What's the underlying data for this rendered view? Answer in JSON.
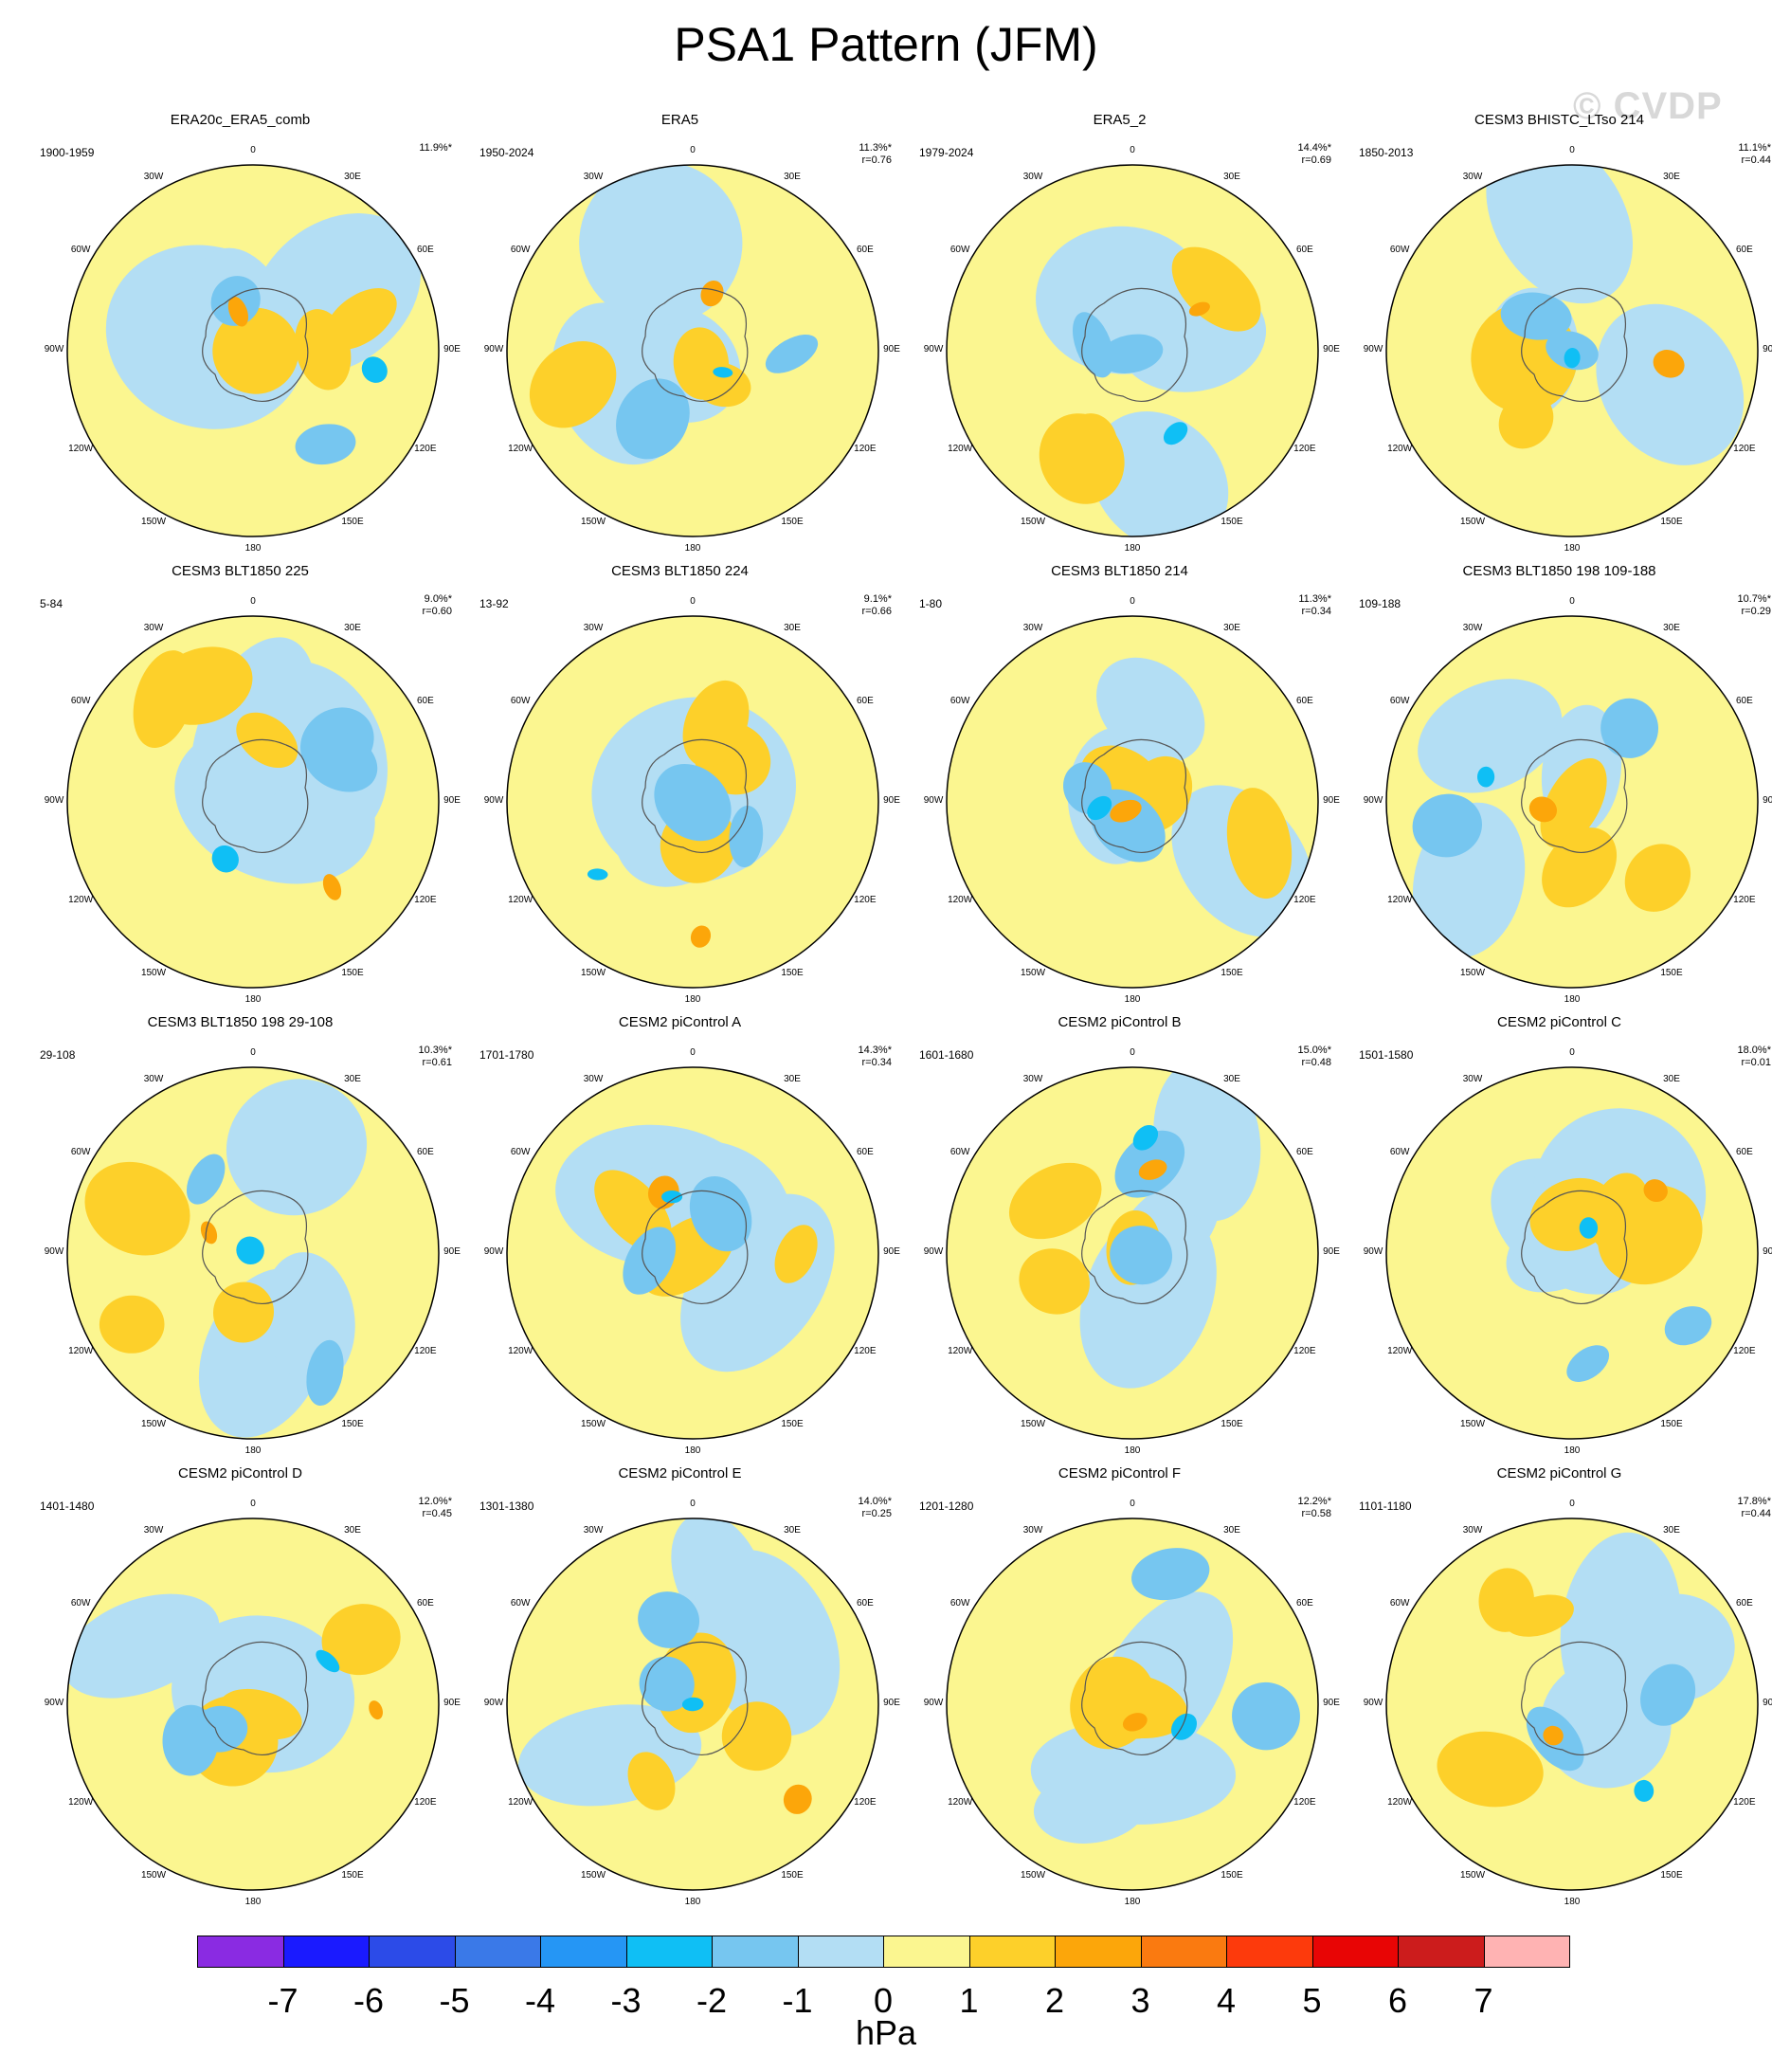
{
  "title": "PSA1 Pattern (JFM)",
  "watermark": "© CVDP",
  "lon_labels": {
    "top": "0",
    "bottom": "180",
    "left": "90W",
    "right": "90E",
    "ul": "30W",
    "ur": "30E",
    "ul2": "60W",
    "ur2": "60E",
    "ll": "120W",
    "lr": "120E",
    "ll2": "150W",
    "lr2": "150E"
  },
  "panels": [
    {
      "title": "ERA20c_ERA5_comb",
      "years": "1900-1959",
      "pct": "11.9%*",
      "r": ""
    },
    {
      "title": "ERA5",
      "years": "1950-2024",
      "pct": "11.3%*",
      "r": "r=0.76"
    },
    {
      "title": "ERA5_2",
      "years": "1979-2024",
      "pct": "14.4%*",
      "r": "r=0.69"
    },
    {
      "title": "CESM3 BHISTC_LTso 214",
      "years": "1850-2013",
      "pct": "11.1%*",
      "r": "r=0.44"
    },
    {
      "title": "CESM3 BLT1850 225",
      "years": "5-84",
      "pct": "9.0%*",
      "r": "r=0.60"
    },
    {
      "title": "CESM3 BLT1850 224",
      "years": "13-92",
      "pct": "9.1%*",
      "r": "r=0.66"
    },
    {
      "title": "CESM3 BLT1850 214",
      "years": "1-80",
      "pct": "11.3%*",
      "r": "r=0.34"
    },
    {
      "title": "CESM3 BLT1850 198 109-188",
      "years": "109-188",
      "pct": "10.7%*",
      "r": "r=0.29"
    },
    {
      "title": "CESM3 BLT1850 198 29-108",
      "years": "29-108",
      "pct": "10.3%*",
      "r": "r=0.61"
    },
    {
      "title": "CESM2 piControl A",
      "years": "1701-1780",
      "pct": "14.3%*",
      "r": "r=0.34"
    },
    {
      "title": "CESM2 piControl B",
      "years": "1601-1680",
      "pct": "15.0%*",
      "r": "r=0.48"
    },
    {
      "title": "CESM2 piControl C",
      "years": "1501-1580",
      "pct": "18.0%*",
      "r": "r=0.01"
    },
    {
      "title": "CESM2 piControl D",
      "years": "1401-1480",
      "pct": "12.0%*",
      "r": "r=0.45"
    },
    {
      "title": "CESM2 piControl E",
      "years": "1301-1380",
      "pct": "14.0%*",
      "r": "r=0.25"
    },
    {
      "title": "CESM2 piControl F",
      "years": "1201-1280",
      "pct": "12.2%*",
      "r": "r=0.58"
    },
    {
      "title": "CESM2 piControl G",
      "years": "1101-1180",
      "pct": "17.8%*",
      "r": "r=0.44"
    }
  ],
  "colorbar": {
    "colors": [
      "#8a2be2",
      "#1a1aff",
      "#2c4be8",
      "#3a79e8",
      "#2596f5",
      "#0fbff5",
      "#76c6f0",
      "#b3def4",
      "#fbf690",
      "#fdd02a",
      "#fca60a",
      "#fa7a10",
      "#fd3a0c",
      "#e80505",
      "#cc1c1c",
      "#ffb3b3"
    ],
    "ticks": [
      "-7",
      "-6",
      "-5",
      "-4",
      "-3",
      "-2",
      "-1",
      "0",
      "1",
      "2",
      "3",
      "4",
      "5",
      "6",
      "7"
    ],
    "unit": "hPa"
  }
}
